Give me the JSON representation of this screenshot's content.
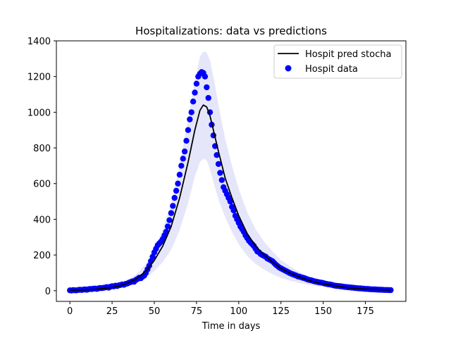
{
  "chart_data": {
    "type": "scatter",
    "title": "Hospitalizations: data vs predictions",
    "xlabel": "Time in days",
    "ylabel": "",
    "xlim": [
      -8,
      199
    ],
    "ylim": [
      -60,
      1400
    ],
    "xticks": [
      0,
      25,
      50,
      75,
      100,
      125,
      150,
      175
    ],
    "yticks": [
      0,
      200,
      400,
      600,
      800,
      1000,
      1200,
      1400
    ],
    "grid": false,
    "legend_position": "top-right",
    "colors": {
      "line": "#000000",
      "points": "#0000ff",
      "band": "#e6e6fa"
    },
    "series": [
      {
        "name": "Hospit pred stocha",
        "kind": "line",
        "x": [
          0,
          5,
          10,
          15,
          20,
          25,
          30,
          35,
          40,
          45,
          50,
          55,
          60,
          65,
          70,
          74,
          77,
          79,
          81,
          83,
          85,
          88,
          92,
          96,
          100,
          105,
          110,
          115,
          120,
          125,
          130,
          135,
          140,
          145,
          150,
          155,
          160,
          165,
          170,
          175,
          180,
          185,
          190
        ],
        "y": [
          2,
          3,
          5,
          8,
          12,
          18,
          28,
          45,
          70,
          110,
          170,
          250,
          360,
          520,
          720,
          900,
          1010,
          1040,
          1030,
          980,
          900,
          780,
          630,
          520,
          420,
          320,
          250,
          200,
          160,
          125,
          100,
          80,
          62,
          48,
          38,
          30,
          22,
          16,
          12,
          9,
          7,
          5,
          4
        ]
      },
      {
        "name": "",
        "kind": "band",
        "x": [
          0,
          5,
          10,
          15,
          20,
          25,
          30,
          35,
          40,
          45,
          50,
          55,
          60,
          65,
          70,
          74,
          77,
          79,
          81,
          83,
          85,
          88,
          92,
          96,
          100,
          105,
          110,
          115,
          120,
          125,
          130,
          135,
          140,
          145,
          150,
          155,
          160,
          165,
          170,
          175,
          180,
          185,
          190
        ],
        "lower": [
          0,
          1,
          2,
          4,
          7,
          11,
          18,
          28,
          45,
          70,
          110,
          160,
          230,
          340,
          490,
          640,
          720,
          740,
          730,
          680,
          610,
          510,
          410,
          330,
          260,
          195,
          150,
          118,
          92,
          72,
          57,
          45,
          35,
          27,
          21,
          16,
          12,
          9,
          6,
          5,
          3,
          2,
          2
        ],
        "upper": [
          4,
          6,
          9,
          13,
          18,
          26,
          40,
          63,
          97,
          150,
          235,
          345,
          490,
          700,
          960,
          1180,
          1310,
          1340,
          1335,
          1290,
          1200,
          1040,
          850,
          700,
          570,
          440,
          345,
          275,
          220,
          172,
          138,
          110,
          86,
          67,
          52,
          41,
          31,
          23,
          17,
          13,
          10,
          7,
          6
        ]
      },
      {
        "name": "Hospit data",
        "kind": "scatter",
        "x": [
          0,
          1,
          2,
          3,
          4,
          5,
          6,
          7,
          8,
          9,
          10,
          11,
          12,
          13,
          14,
          15,
          16,
          17,
          18,
          19,
          20,
          21,
          22,
          23,
          24,
          25,
          26,
          27,
          28,
          29,
          30,
          31,
          32,
          33,
          34,
          35,
          36,
          37,
          38,
          39,
          40,
          41,
          42,
          43,
          44,
          45,
          46,
          47,
          48,
          49,
          50,
          51,
          52,
          53,
          54,
          55,
          56,
          57,
          58,
          59,
          60,
          61,
          62,
          63,
          64,
          65,
          66,
          67,
          68,
          69,
          70,
          71,
          72,
          73,
          74,
          75,
          76,
          77,
          78,
          79,
          80,
          81,
          82,
          83,
          84,
          85,
          86,
          87,
          88,
          89,
          90,
          91,
          92,
          93,
          94,
          95,
          96,
          97,
          98,
          99,
          100,
          101,
          102,
          103,
          104,
          105,
          106,
          107,
          108,
          109,
          110,
          111,
          112,
          113,
          114,
          115,
          116,
          117,
          118,
          119,
          120,
          121,
          122,
          123,
          124,
          125,
          126,
          127,
          128,
          129,
          130,
          131,
          132,
          133,
          134,
          135,
          136,
          137,
          138,
          139,
          140,
          141,
          142,
          143,
          144,
          145,
          146,
          147,
          148,
          149,
          150,
          151,
          152,
          153,
          154,
          155,
          156,
          157,
          158,
          159,
          160,
          161,
          162,
          163,
          164,
          165,
          166,
          167,
          168,
          169,
          170,
          171,
          172,
          173,
          174,
          175,
          176,
          177,
          178,
          179,
          180,
          181,
          182,
          183,
          184,
          185,
          186,
          187,
          188,
          189,
          190
        ],
        "y": [
          2,
          1,
          3,
          2,
          2,
          4,
          5,
          4,
          6,
          7,
          5,
          8,
          10,
          9,
          11,
          12,
          10,
          13,
          15,
          14,
          16,
          18,
          20,
          17,
          22,
          25,
          24,
          28,
          26,
          30,
          32,
          35,
          33,
          38,
          40,
          45,
          48,
          52,
          50,
          60,
          65,
          72,
          70,
          78,
          85,
          100,
          120,
          140,
          165,
          190,
          215,
          235,
          255,
          265,
          275,
          290,
          310,
          330,
          360,
          395,
          435,
          475,
          520,
          560,
          600,
          650,
          700,
          740,
          780,
          840,
          900,
          960,
          1000,
          1060,
          1110,
          1160,
          1200,
          1215,
          1225,
          1220,
          1200,
          1140,
          1080,
          1000,
          930,
          870,
          810,
          760,
          710,
          660,
          620,
          580,
          560,
          540,
          520,
          500,
          470,
          450,
          420,
          400,
          380,
          360,
          345,
          330,
          310,
          295,
          280,
          270,
          260,
          250,
          235,
          220,
          215,
          205,
          200,
          195,
          190,
          180,
          175,
          170,
          165,
          155,
          145,
          138,
          130,
          125,
          120,
          115,
          110,
          105,
          100,
          95,
          92,
          88,
          85,
          80,
          78,
          75,
          72,
          70,
          66,
          62,
          60,
          58,
          55,
          52,
          50,
          48,
          46,
          45,
          43,
          40,
          38,
          36,
          35,
          33,
          30,
          28,
          27,
          26,
          25,
          24,
          22,
          21,
          20,
          19,
          18,
          17,
          16,
          15,
          14,
          13,
          13,
          12,
          11,
          10,
          10,
          9,
          8,
          8,
          7,
          7,
          6,
          6,
          5,
          5,
          4,
          4,
          4,
          3,
          3
        ]
      }
    ]
  }
}
